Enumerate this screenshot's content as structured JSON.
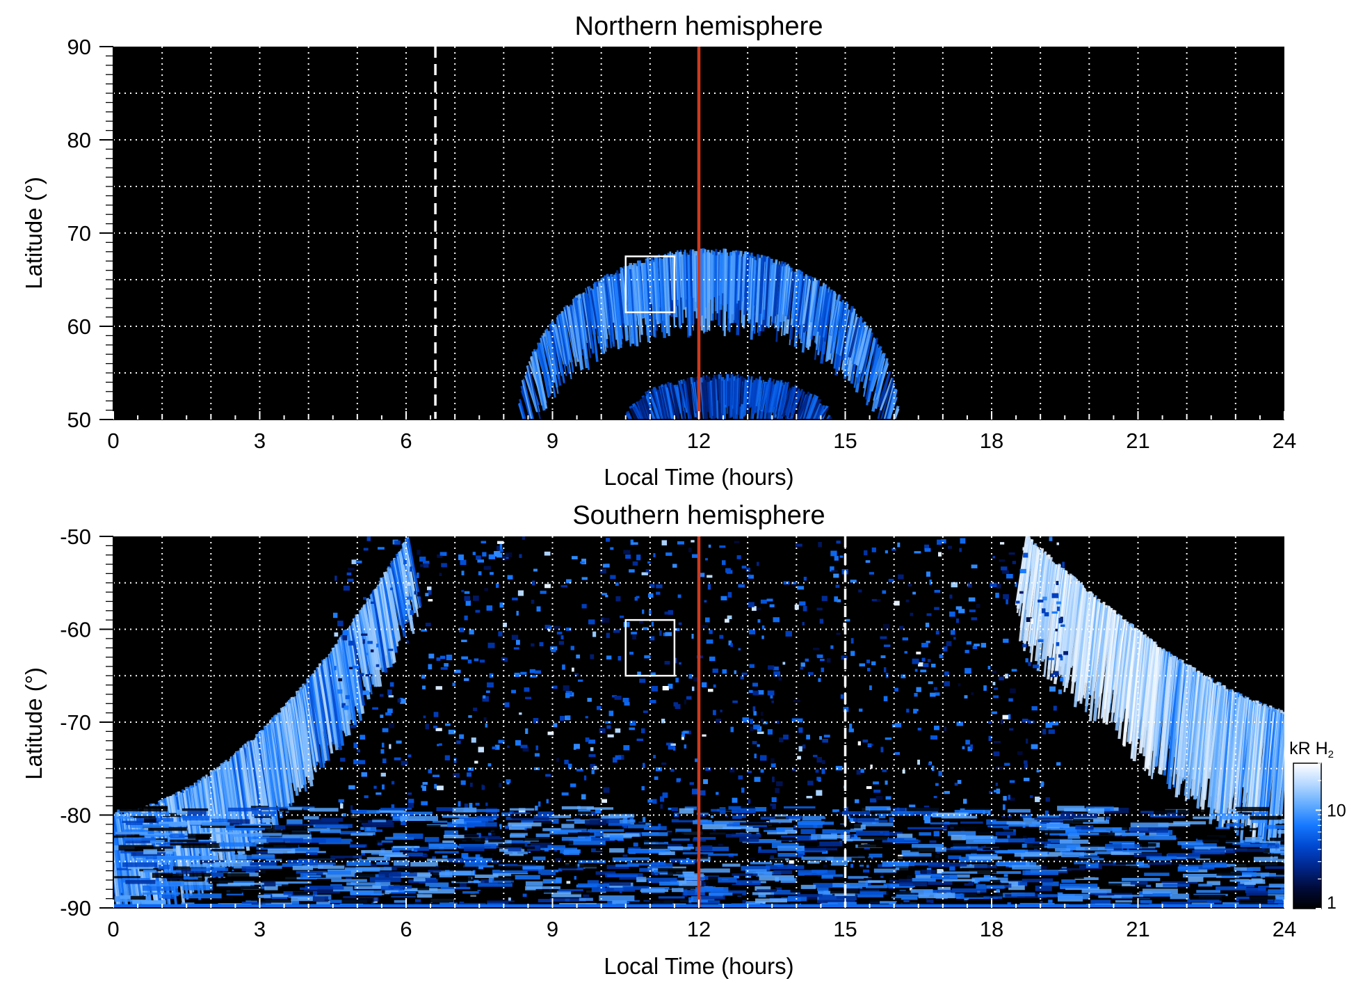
{
  "chart_data": [
    {
      "type": "heatmap",
      "title": "Northern hemisphere",
      "xlabel": "Local Time (hours)",
      "ylabel": "Latitude (°)",
      "xlim": [
        0,
        24
      ],
      "ylim": [
        50,
        90
      ],
      "x_major_ticks": [
        0,
        3,
        6,
        9,
        12,
        15,
        18,
        21,
        24
      ],
      "x_tick_labels": [
        "0",
        "3",
        "6",
        "9",
        "12",
        "15",
        "18",
        "21",
        "24"
      ],
      "y_major_ticks": [
        50,
        60,
        70,
        80,
        90
      ],
      "y_tick_labels": [
        "50",
        "60",
        "70",
        "80",
        "90"
      ],
      "grid": true,
      "grid_x_step_hours": 1,
      "grid_y_step_deg": 5,
      "grid_style": "white dotted",
      "background": "#000000",
      "emission_features": [
        {
          "shape": "arc",
          "center_lt": 12.2,
          "lt_half_width": 3.9,
          "lat_peak": 68,
          "lat_edge": 50,
          "thickness_deg": 8,
          "peak_kR": 12
        },
        {
          "shape": "arc",
          "center_lt": 12.6,
          "lt_half_width": 2.1,
          "lat_peak": 54.5,
          "lat_edge": 50,
          "thickness_deg": 4.5,
          "peak_kR": 6
        }
      ],
      "reference_lines": [
        {
          "orientation": "vertical",
          "x": 12,
          "style": "solid",
          "color": "#cc3a1e"
        },
        {
          "orientation": "vertical",
          "x": 6.6,
          "style": "dashed",
          "color": "#ffffff"
        }
      ],
      "box": {
        "x0": 10.5,
        "x1": 11.5,
        "y0": 61.5,
        "y1": 67.5,
        "color": "#ffffff"
      }
    },
    {
      "type": "heatmap",
      "title": "Southern hemisphere",
      "xlabel": "Local Time (hours)",
      "ylabel": "Latitude (°)",
      "xlim": [
        0,
        24
      ],
      "ylim": [
        -90,
        -50
      ],
      "x_major_ticks": [
        0,
        3,
        6,
        9,
        12,
        15,
        18,
        21,
        24
      ],
      "x_tick_labels": [
        "0",
        "3",
        "6",
        "9",
        "12",
        "15",
        "18",
        "21",
        "24"
      ],
      "y_major_ticks": [
        -90,
        -80,
        -70,
        -60,
        -50
      ],
      "y_tick_labels": [
        "-90",
        "-80",
        "-70",
        "-60",
        "-50"
      ],
      "grid": true,
      "grid_x_step_hours": 1,
      "grid_y_step_deg": 5,
      "grid_style": "white dotted",
      "background": "#000000",
      "emission_features": [
        {
          "shape": "arc",
          "side": "left",
          "lt_range": [
            0,
            6
          ],
          "lat_range": [
            -80,
            -50
          ],
          "peak_kR": 15
        },
        {
          "shape": "arc",
          "side": "right",
          "lt_range": [
            18.8,
            24
          ],
          "lat_range": [
            -80,
            -50
          ],
          "peak_kR": 30
        },
        {
          "shape": "speckle",
          "lt_range": [
            5,
            19
          ],
          "lat_range": [
            -90,
            -50
          ],
          "peak_kR": 8
        }
      ],
      "reference_lines": [
        {
          "orientation": "vertical",
          "x": 12,
          "style": "solid",
          "color": "#cc3a1e"
        },
        {
          "orientation": "vertical",
          "x": 15,
          "style": "dashed",
          "color": "#ffffff"
        }
      ],
      "box": {
        "x0": 10.5,
        "x1": 11.5,
        "y0": -65,
        "y1": -59,
        "color": "#ffffff"
      }
    }
  ],
  "colorbar": {
    "label_main": "kR H",
    "label_sub": "2",
    "scale": "log",
    "range": [
      1,
      30
    ],
    "tick_values": [
      1,
      10
    ],
    "tick_labels": [
      "1",
      "10"
    ],
    "colors": [
      "#000000",
      "#000b3a",
      "#00268a",
      "#0048d0",
      "#1578ff",
      "#62acff",
      "#b6d9ff",
      "#ffffff"
    ]
  }
}
